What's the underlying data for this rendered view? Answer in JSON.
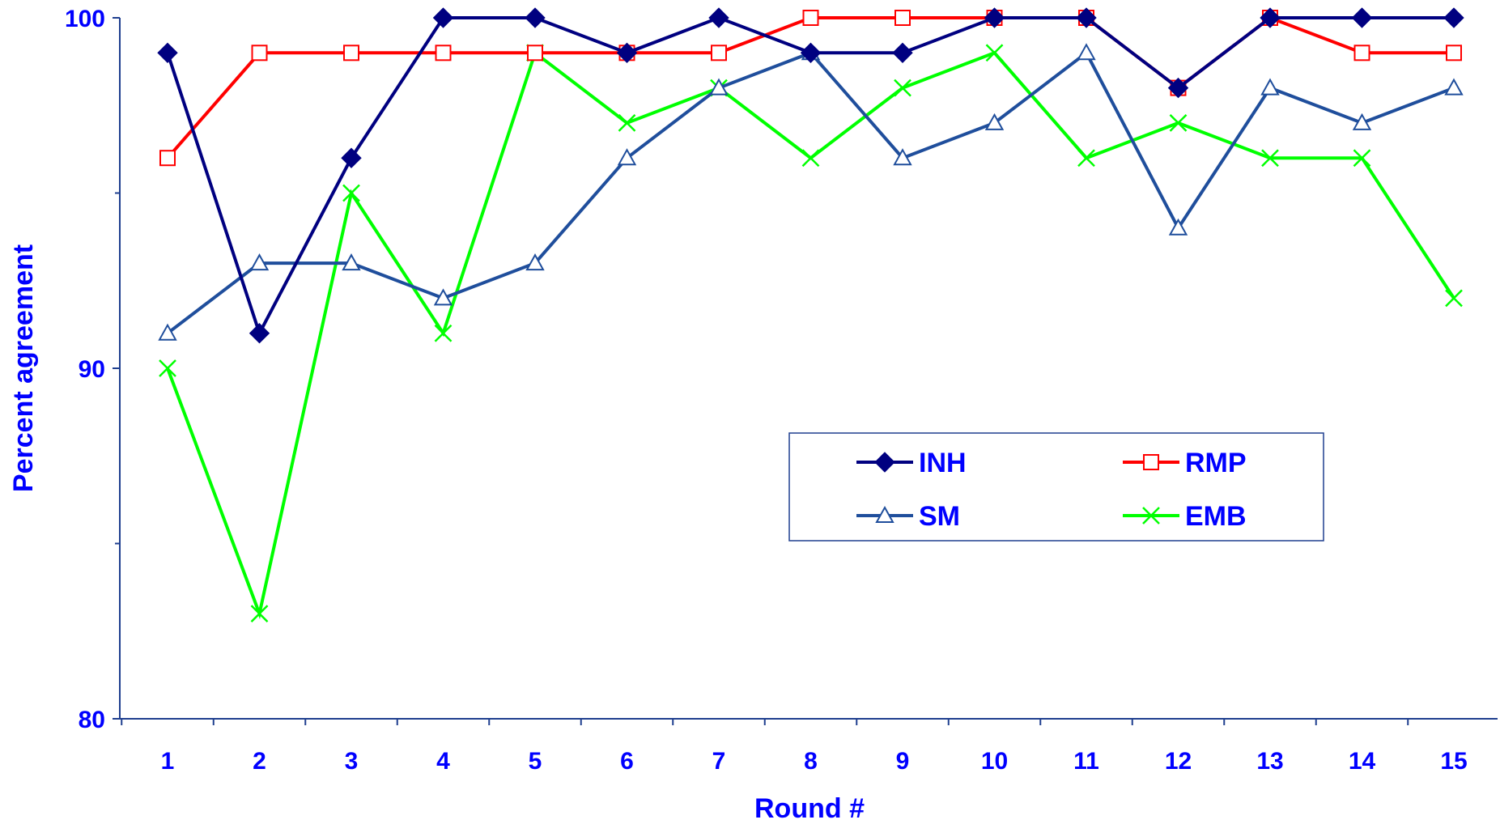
{
  "chart_data": {
    "type": "line",
    "title": "",
    "xlabel": "Round #",
    "ylabel": "Percent agreement",
    "x": [
      1,
      2,
      3,
      4,
      5,
      6,
      7,
      8,
      9,
      10,
      11,
      12,
      13,
      14,
      15
    ],
    "x_tick_labels": [
      "1",
      "2",
      "3",
      "4",
      "5",
      "6",
      "7",
      "8",
      "9",
      "10",
      "11",
      "12",
      "13",
      "14",
      "15"
    ],
    "ylim": [
      80,
      100
    ],
    "y_major_ticks": [
      80,
      90,
      100
    ],
    "y_tick_labels": [
      "80",
      "90",
      "100"
    ],
    "y_minor_ticks": [
      85,
      95
    ],
    "grid": false,
    "legend_position": "center-right",
    "series": [
      {
        "name": "INH",
        "color": "#000080",
        "marker": "filled-diamond",
        "values": [
          99,
          91,
          96,
          100,
          100,
          99,
          100,
          99,
          99,
          100,
          100,
          98,
          100,
          100,
          100
        ]
      },
      {
        "name": "RMP",
        "color": "#ff0000",
        "marker": "open-square",
        "values": [
          96,
          99,
          99,
          99,
          99,
          99,
          99,
          100,
          100,
          100,
          100,
          98,
          100,
          99,
          99
        ]
      },
      {
        "name": "SM",
        "color": "#1f4e9c",
        "marker": "open-triangle",
        "values": [
          91,
          93,
          93,
          92,
          93,
          96,
          98,
          99,
          96,
          97,
          99,
          94,
          98,
          97,
          98
        ]
      },
      {
        "name": "EMB",
        "color": "#00ff00",
        "marker": "x-cross",
        "values": [
          90,
          83,
          95,
          91,
          99,
          97,
          98,
          96,
          98,
          99,
          96,
          97,
          96,
          96,
          92
        ]
      }
    ]
  }
}
